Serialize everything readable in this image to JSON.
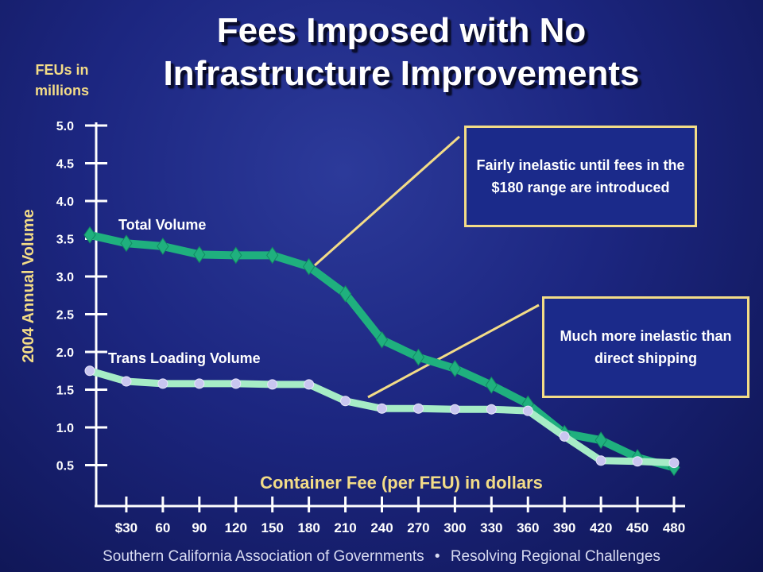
{
  "title_line1": "Fees Imposed with No",
  "title_line2": "Infrastructure Improvements",
  "callouts": [
    {
      "text": "Fairly inelastic until fees in the $180 range are introduced"
    },
    {
      "text": "Much more inelastic than direct shipping"
    }
  ],
  "footer": {
    "left": "Southern California Association of Governments",
    "separator": "•",
    "right": "Resolving Regional Challenges"
  },
  "colors": {
    "total_volume": "#1fb07e",
    "trans_loading": "#a6ecc6",
    "trans_marker": "#c9c6f0",
    "callout_border": "#f3dc87",
    "axis_label": "#f3dc87"
  },
  "chart_data": {
    "type": "line",
    "title": "Fees Imposed with No Infrastructure Improvements",
    "xlabel": "Container Fee (per FEU) in dollars",
    "ylabel": "2004 Annual Volume",
    "yunit": "FEUs in millions",
    "x": [
      0,
      30,
      60,
      90,
      120,
      150,
      180,
      210,
      240,
      270,
      300,
      330,
      360,
      390,
      420,
      450,
      480
    ],
    "x_tick_labels": [
      "$30",
      "60",
      "90",
      "120",
      "150",
      "180",
      "210",
      "240",
      "270",
      "300",
      "330",
      "360",
      "390",
      "420",
      "450",
      "480"
    ],
    "y_tick_labels": [
      "0.5",
      "1.0",
      "1.5",
      "2.0",
      "2.5",
      "3.0",
      "3.5",
      "4.0",
      "4.5",
      "5.0"
    ],
    "ylim": [
      0,
      5.0
    ],
    "xlim": [
      0,
      480
    ],
    "series": [
      {
        "name": "Total Volume",
        "values": [
          3.55,
          3.44,
          3.4,
          3.29,
          3.28,
          3.28,
          3.13,
          2.77,
          2.16,
          1.93,
          1.78,
          1.56,
          1.31,
          0.92,
          0.83,
          0.6,
          0.47
        ]
      },
      {
        "name": "Trans Loading Volume",
        "values": [
          1.75,
          1.61,
          1.58,
          1.58,
          1.58,
          1.57,
          1.57,
          1.35,
          1.25,
          1.25,
          1.24,
          1.24,
          1.22,
          0.88,
          0.56,
          0.55,
          0.53
        ]
      }
    ],
    "grid": false,
    "legend": "inline labels"
  }
}
